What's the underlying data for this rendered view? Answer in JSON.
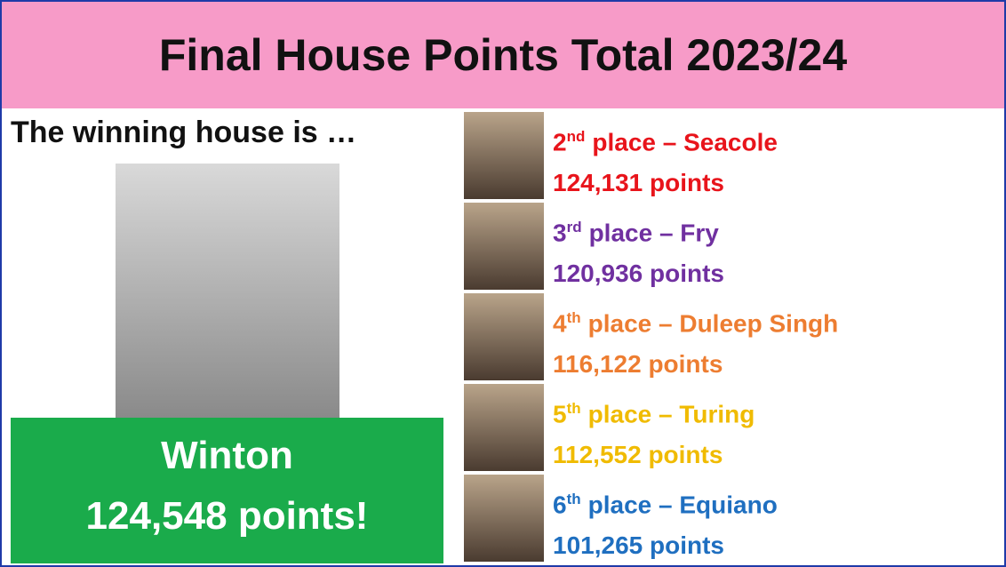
{
  "header": {
    "title": "Final House Points Total 2023/24"
  },
  "winner": {
    "intro": "The winning house is …",
    "house": "Winton",
    "points": "124,548 points!"
  },
  "places": [
    {
      "number": "2",
      "suffix": "nd",
      "label": "place – Seacole",
      "points": "124,131 points"
    },
    {
      "number": "3",
      "suffix": "rd",
      "label": "place – Fry",
      "points": "120,936 points"
    },
    {
      "number": "4",
      "suffix": "th",
      "label": "place – Duleep Singh",
      "points": "116,122 points"
    },
    {
      "number": "5",
      "suffix": "th",
      "label": "place – Turing",
      "points": "112,552 points"
    },
    {
      "number": "6",
      "suffix": "th",
      "label": "place – Equiano",
      "points": "101,265 points"
    }
  ]
}
